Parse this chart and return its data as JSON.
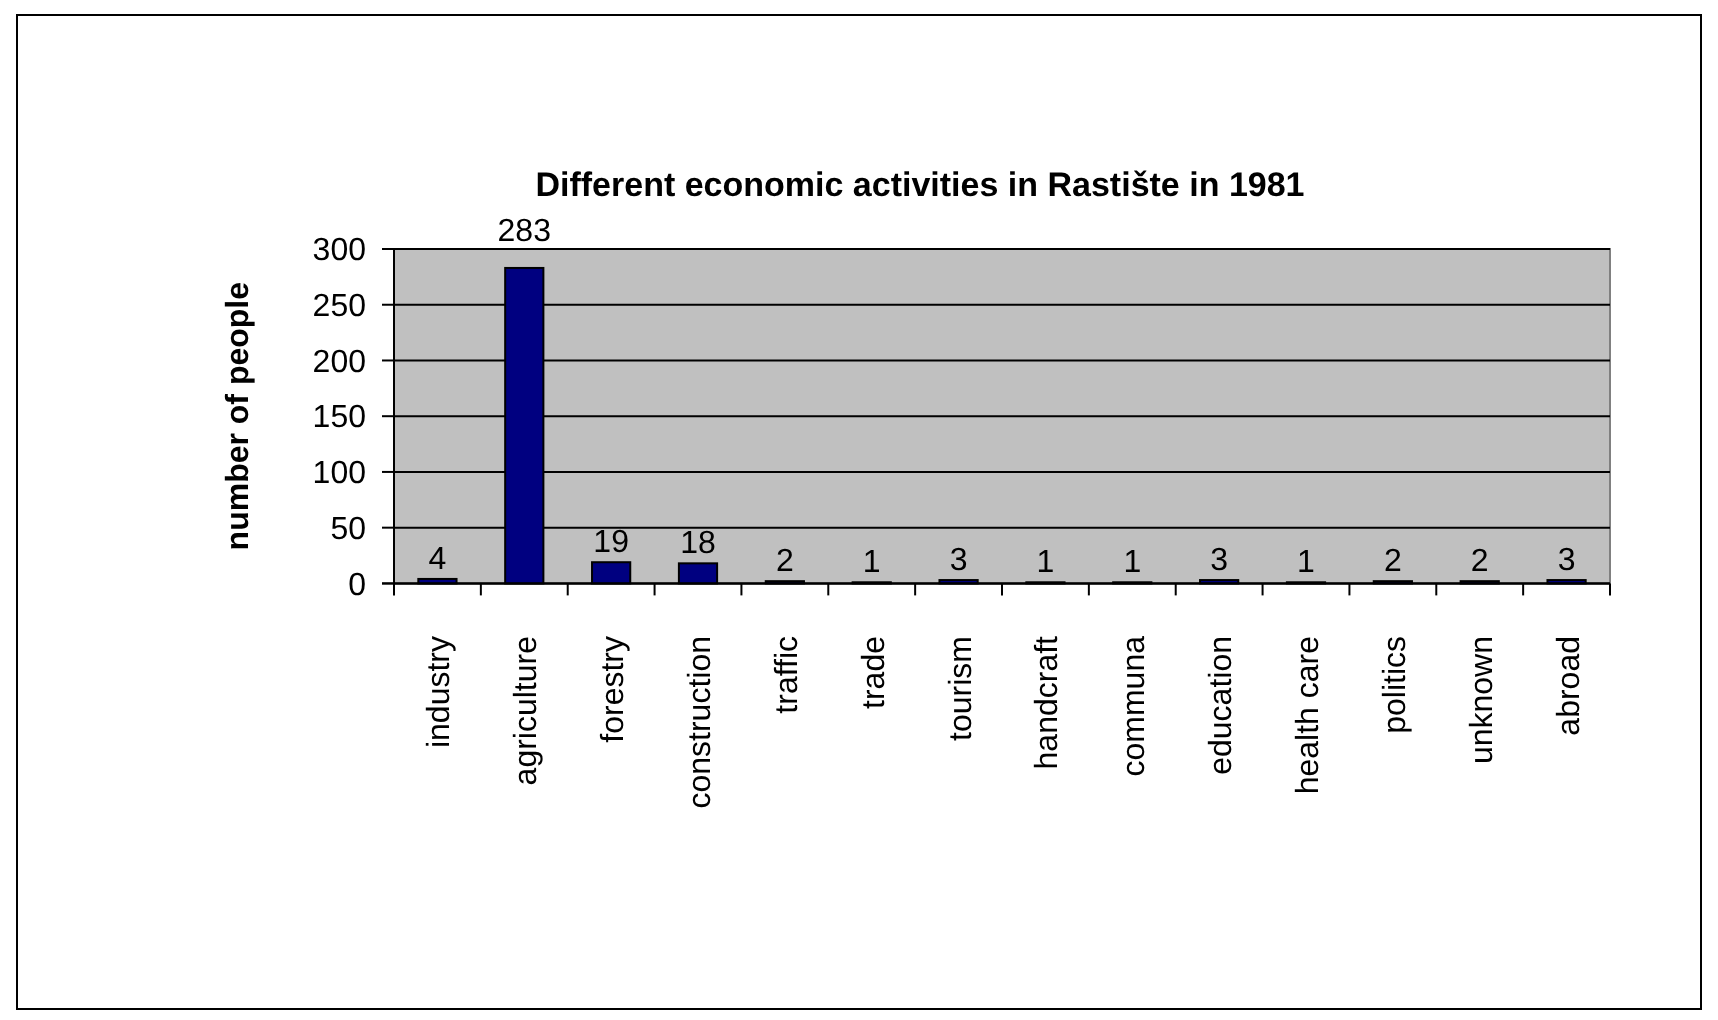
{
  "chart_data": {
    "type": "bar",
    "title": "Different economic activities in Rastište in 1981",
    "ylabel": "number of people",
    "categories": [
      "industry",
      "agriculture",
      "forestry",
      "construction",
      "traffic",
      "trade",
      "tourism",
      "handcraft",
      "communa",
      "education",
      "health care",
      "politics",
      "unknown",
      "abroad"
    ],
    "values": [
      4,
      283,
      19,
      18,
      2,
      1,
      3,
      1,
      1,
      3,
      1,
      2,
      2,
      3
    ],
    "color": "#000080",
    "ylim": [
      0,
      300
    ],
    "yticks": [
      0,
      50,
      100,
      150,
      200,
      250,
      300
    ],
    "grid": "y",
    "data_labels": true
  }
}
